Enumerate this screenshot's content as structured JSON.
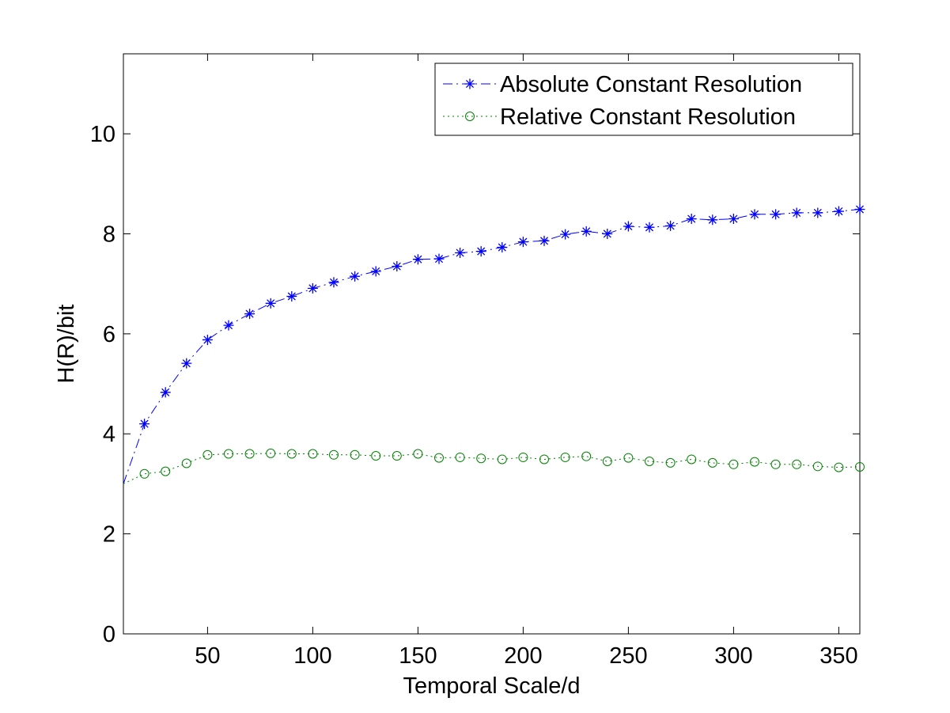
{
  "chart_data": {
    "type": "line",
    "xlabel": "Temporal Scale/d",
    "ylabel": "H(R)/bit",
    "xlim": [
      10,
      360
    ],
    "ylim": [
      0,
      11.6
    ],
    "xticks": [
      50,
      100,
      150,
      200,
      250,
      300,
      350
    ],
    "yticks": [
      0,
      2,
      4,
      6,
      8,
      10
    ],
    "grid": false,
    "legend_position": "top-right",
    "x": [
      10,
      20,
      30,
      40,
      50,
      60,
      70,
      80,
      90,
      100,
      110,
      120,
      130,
      140,
      150,
      160,
      170,
      180,
      190,
      200,
      210,
      220,
      230,
      240,
      250,
      260,
      270,
      280,
      290,
      300,
      310,
      320,
      330,
      340,
      350,
      360
    ],
    "series": [
      {
        "name": "Absolute Constant Resolution",
        "color": "#0000ff",
        "line_style": "dashdot",
        "marker": "asterisk",
        "values": [
          3.0,
          4.2,
          4.83,
          5.41,
          5.88,
          6.17,
          6.4,
          6.61,
          6.75,
          6.91,
          7.03,
          7.15,
          7.25,
          7.35,
          7.49,
          7.5,
          7.62,
          7.65,
          7.73,
          7.84,
          7.86,
          7.99,
          8.05,
          8.0,
          8.15,
          8.13,
          8.16,
          8.3,
          8.28,
          8.3,
          8.39,
          8.39,
          8.42,
          8.42,
          8.45,
          8.49
        ]
      },
      {
        "name": "Relative Constant Resolution",
        "color": "#008000",
        "line_style": "dotted",
        "marker": "circle",
        "values": [
          3.0,
          3.2,
          3.25,
          3.41,
          3.58,
          3.6,
          3.6,
          3.61,
          3.6,
          3.6,
          3.58,
          3.58,
          3.56,
          3.56,
          3.6,
          3.52,
          3.53,
          3.51,
          3.49,
          3.53,
          3.49,
          3.53,
          3.55,
          3.45,
          3.52,
          3.45,
          3.42,
          3.49,
          3.42,
          3.39,
          3.44,
          3.39,
          3.39,
          3.35,
          3.33,
          3.34
        ]
      }
    ]
  }
}
